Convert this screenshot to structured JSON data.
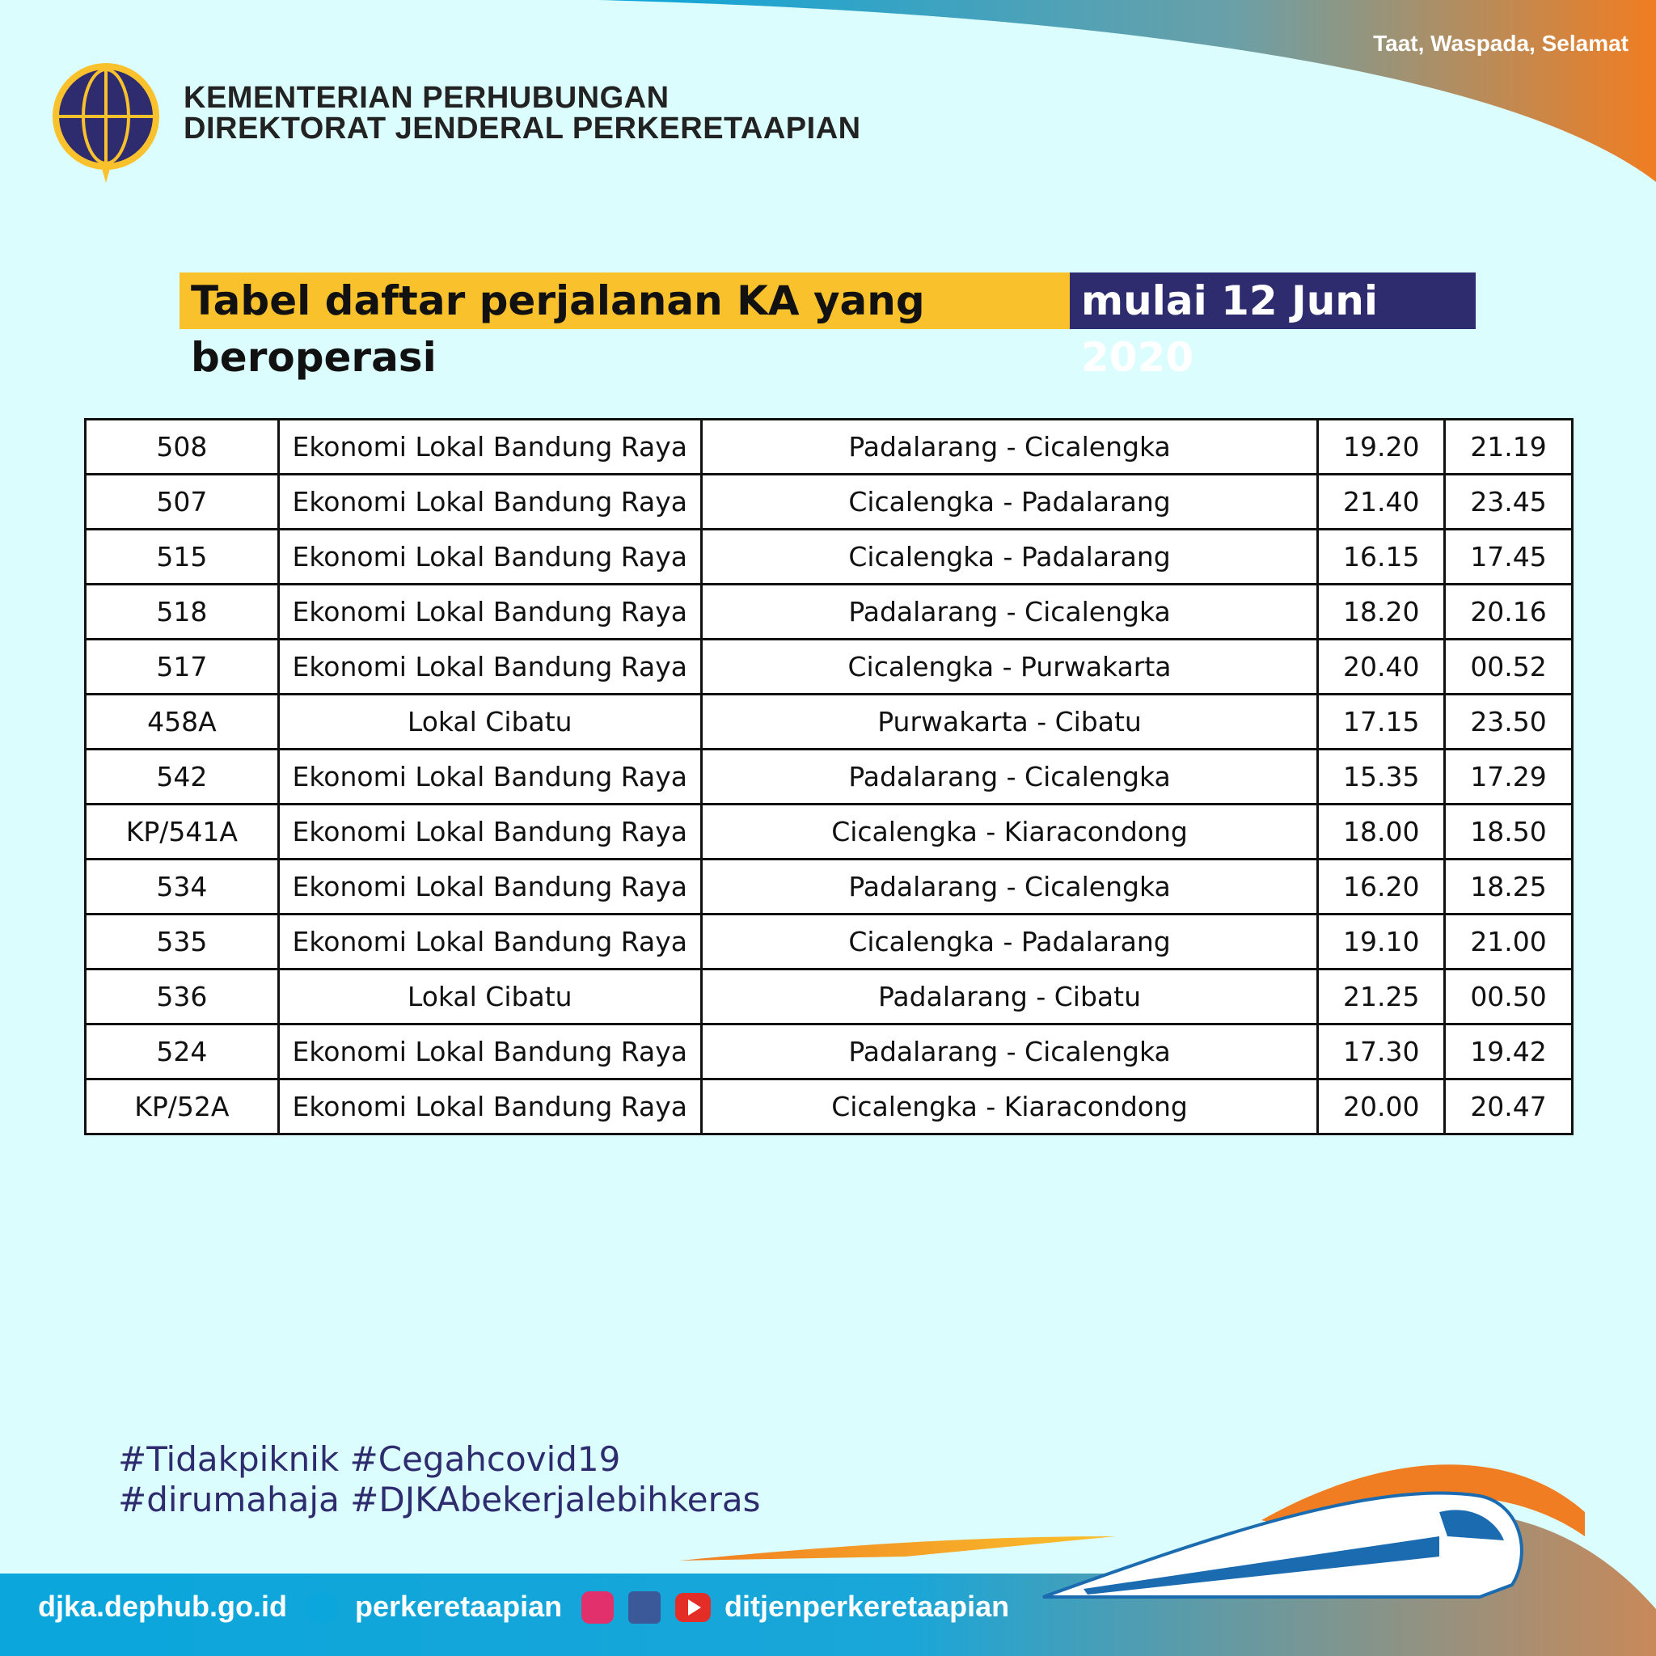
{
  "header": {
    "tagline": "Taat, Waspada, Selamat",
    "ministry": [
      "KEMENTERIAN PERHUBUNGAN",
      "DIREKTORAT JENDERAL PERKERETAAPIAN"
    ]
  },
  "title": {
    "main": "Tabel daftar perjalanan KA yang beroperasi",
    "date": "mulai 12 Juni 2020"
  },
  "table": {
    "rows": [
      [
        "508",
        "Ekonomi Lokal Bandung Raya",
        "Padalarang - Cicalengka",
        "19.20",
        "21.19"
      ],
      [
        "507",
        "Ekonomi Lokal Bandung Raya",
        "Cicalengka - Padalarang",
        "21.40",
        "23.45"
      ],
      [
        "515",
        "Ekonomi Lokal Bandung Raya",
        "Cicalengka - Padalarang",
        "16.15",
        "17.45"
      ],
      [
        "518",
        "Ekonomi Lokal Bandung Raya",
        "Padalarang - Cicalengka",
        "18.20",
        "20.16"
      ],
      [
        "517",
        "Ekonomi Lokal Bandung Raya",
        "Cicalengka - Purwakarta",
        "20.40",
        "00.52"
      ],
      [
        "458A",
        "Lokal Cibatu",
        "Purwakarta - Cibatu",
        "17.15",
        "23.50"
      ],
      [
        "542",
        "Ekonomi Lokal Bandung Raya",
        "Padalarang - Cicalengka",
        "15.35",
        "17.29"
      ],
      [
        "KP/541A",
        "Ekonomi Lokal Bandung Raya",
        "Cicalengka - Kiaracondong",
        "18.00",
        "18.50"
      ],
      [
        "534",
        "Ekonomi Lokal Bandung Raya",
        "Padalarang - Cicalengka",
        "16.20",
        "18.25"
      ],
      [
        "535",
        "Ekonomi Lokal Bandung Raya",
        "Cicalengka - Padalarang",
        "19.10",
        "21.00"
      ],
      [
        "536",
        "Lokal Cibatu",
        "Padalarang - Cibatu",
        "21.25",
        "00.50"
      ],
      [
        "524",
        "Ekonomi Lokal Bandung Raya",
        "Padalarang - Cicalengka",
        "17.30",
        "19.42"
      ],
      [
        "KP/52A",
        "Ekonomi Lokal Bandung Raya",
        "Cicalengka - Kiaracondong",
        "20.00",
        "20.47"
      ]
    ]
  },
  "hashtags": [
    "#Tidakpiknik #Cegahcovid19",
    "#dirumahaja #DJKAbekerjalebihkeras"
  ],
  "footer": {
    "website": "djka.dephub.go.id",
    "twitter": "perkeretaapian",
    "social": "ditjenperkeretaapian"
  }
}
